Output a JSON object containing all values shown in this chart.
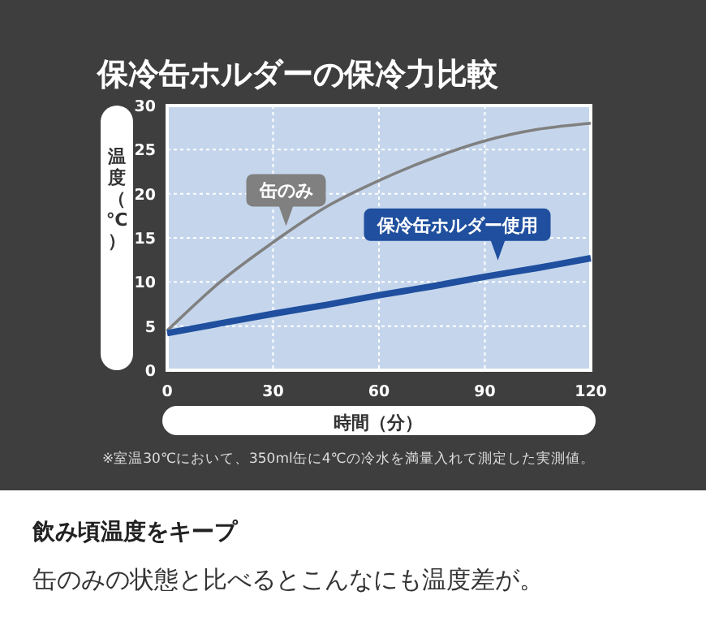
{
  "chart_data": {
    "type": "line",
    "title": "保冷缶ホルダーの保冷力比較",
    "xlabel": "時間（分）",
    "ylabel": "温度（℃）",
    "x": [
      0,
      15,
      30,
      45,
      60,
      75,
      90,
      105,
      120
    ],
    "series": [
      {
        "name": "缶のみ",
        "color": "#808080",
        "values": [
          4.5,
          10,
          14.5,
          18.5,
          21.5,
          24,
          26,
          27.3,
          28
        ]
      },
      {
        "name": "保冷缶ホルダー使用",
        "color": "#1f4f9e",
        "values": [
          4.2,
          5.3,
          6.4,
          7.4,
          8.5,
          9.5,
          10.6,
          11.6,
          12.7
        ]
      }
    ],
    "xlim": [
      0,
      120
    ],
    "ylim": [
      0,
      30
    ],
    "xticks": [
      0,
      30,
      60,
      90,
      120
    ],
    "yticks": [
      0,
      5,
      10,
      15,
      20,
      25,
      30
    ],
    "grid": true,
    "annotations": [
      "※室温30℃において、350ml缶に4℃の冷水を満量入れて測定した実測値。",
      "飲み頃温度をキープ",
      "缶のみの状態と比べるとこんなにも温度差が。"
    ]
  }
}
